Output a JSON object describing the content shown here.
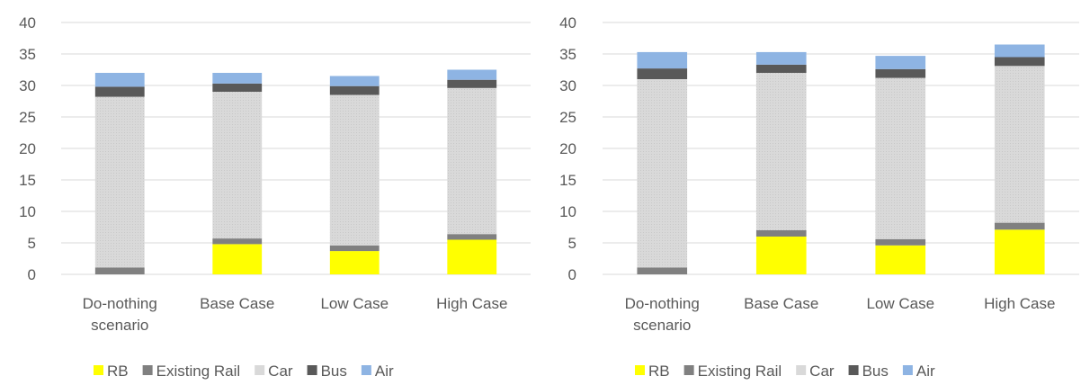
{
  "colors": {
    "RB": "#FFFF00",
    "Existing Rail": "#808080",
    "Car": "#D9D9D9",
    "Bus": "#595959",
    "Air": "#8EB4E3",
    "grid": "#D9D9D9",
    "text": "#595959"
  },
  "chart_data": [
    {
      "type": "bar",
      "stacked": true,
      "categories": [
        [
          "Do-nothing",
          "scenario"
        ],
        [
          "Base Case"
        ],
        [
          "Low Case"
        ],
        [
          "High Case"
        ]
      ],
      "ylim": [
        0,
        40
      ],
      "yticks": [
        0,
        5,
        10,
        15,
        20,
        25,
        30,
        35,
        40
      ],
      "grid": true,
      "legend_position": "bottom",
      "series": [
        {
          "name": "RB",
          "values": [
            0,
            4.8,
            3.7,
            5.5
          ]
        },
        {
          "name": "Existing Rail",
          "values": [
            1.1,
            0.9,
            0.9,
            0.9
          ]
        },
        {
          "name": "Car",
          "values": [
            27.1,
            23.3,
            23.9,
            23.2
          ]
        },
        {
          "name": "Bus",
          "values": [
            1.6,
            1.3,
            1.4,
            1.3
          ]
        },
        {
          "name": "Air",
          "values": [
            2.2,
            1.7,
            1.6,
            1.6
          ]
        }
      ]
    },
    {
      "type": "bar",
      "stacked": true,
      "categories": [
        [
          "Do-nothing",
          "scenario"
        ],
        [
          "Base Case"
        ],
        [
          "Low Case"
        ],
        [
          "High Case"
        ]
      ],
      "ylim": [
        0,
        40
      ],
      "yticks": [
        0,
        5,
        10,
        15,
        20,
        25,
        30,
        35,
        40
      ],
      "grid": true,
      "legend_position": "bottom",
      "series": [
        {
          "name": "RB",
          "values": [
            0,
            6.0,
            4.6,
            7.1
          ]
        },
        {
          "name": "Existing Rail",
          "values": [
            1.1,
            1.0,
            1.0,
            1.1
          ]
        },
        {
          "name": "Car",
          "values": [
            29.9,
            25.0,
            25.6,
            24.9
          ]
        },
        {
          "name": "Bus",
          "values": [
            1.7,
            1.3,
            1.4,
            1.4
          ]
        },
        {
          "name": "Air",
          "values": [
            2.6,
            2.0,
            2.1,
            2.0
          ]
        }
      ]
    }
  ]
}
